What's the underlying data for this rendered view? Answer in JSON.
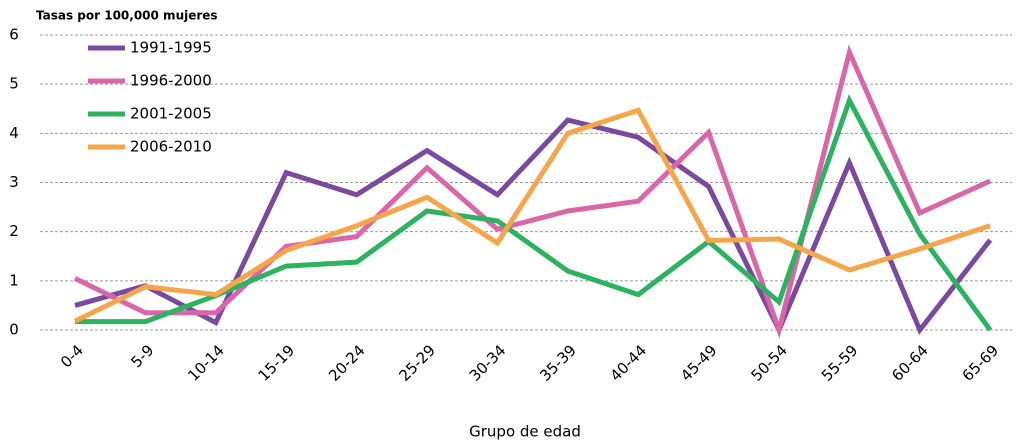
{
  "chart_data": {
    "type": "line",
    "y_label": "Tasas por 100,000 mujeres",
    "x_label": "Grupo de edad",
    "categories": [
      "0-4",
      "5-9",
      "10-14",
      "15-19",
      "20-24",
      "25-29",
      "30-34",
      "35-39",
      "40-44",
      "45-49",
      "50-54",
      "55-59",
      "60-64",
      "65-69"
    ],
    "series": [
      {
        "name": "1991-1995",
        "color": "#7b4a9e",
        "values": [
          0.5,
          0.9,
          0.15,
          3.2,
          2.75,
          3.65,
          2.75,
          4.27,
          3.92,
          2.92,
          0,
          3.4,
          0,
          1.83
        ]
      },
      {
        "name": "1996-2000",
        "color": "#d966a8",
        "values": [
          1.05,
          0.35,
          0.35,
          1.7,
          1.9,
          3.3,
          2.05,
          2.42,
          2.62,
          4.02,
          0,
          5.65,
          2.38,
          3.03
        ]
      },
      {
        "name": "2001-2005",
        "color": "#2db25f",
        "values": [
          0.17,
          0.17,
          0.7,
          1.3,
          1.38,
          2.42,
          2.22,
          1.2,
          0.72,
          1.8,
          0.57,
          4.67,
          1.95,
          0
        ]
      },
      {
        "name": "2006-2010",
        "color": "#f7a54a",
        "values": [
          0.18,
          0.88,
          0.72,
          1.62,
          2.12,
          2.7,
          1.77,
          4.0,
          4.47,
          1.82,
          1.85,
          1.22,
          1.65,
          2.12
        ]
      }
    ],
    "ylim": [
      0,
      6
    ],
    "yticks": [
      0,
      1,
      2,
      3,
      4,
      5,
      6
    ],
    "grid": true,
    "legend": "top-left"
  }
}
